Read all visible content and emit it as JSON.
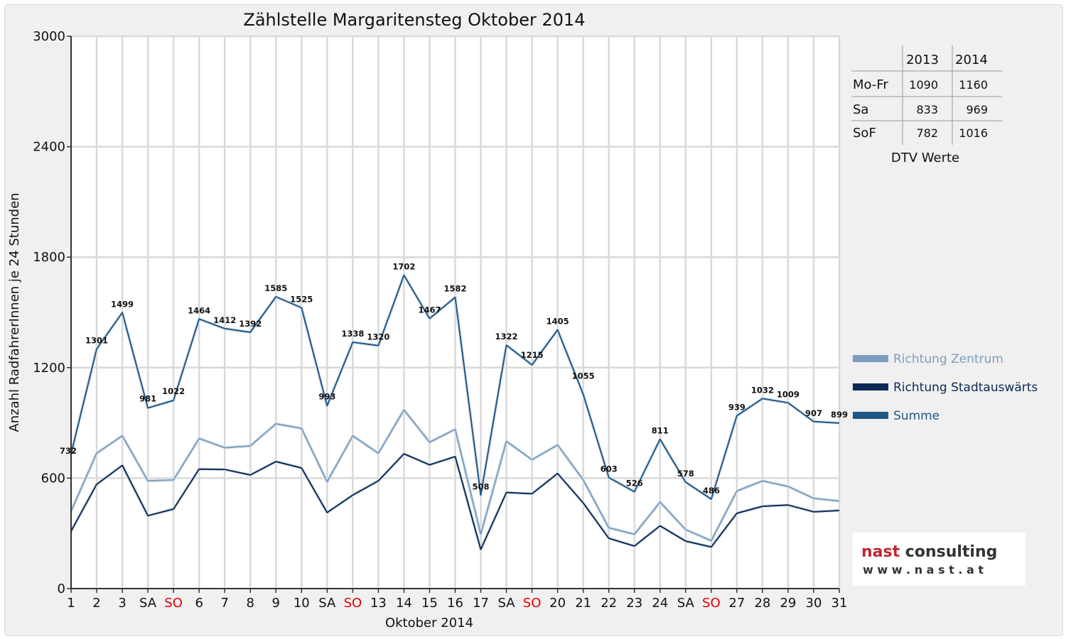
{
  "chart_data": {
    "type": "line",
    "title": "Zählstelle Margaritensteg Oktober 2014",
    "xlabel": "Oktober 2014",
    "ylabel": "Anzahl RadfahrerInnen je 24 Stunden",
    "ylim": [
      0,
      3000
    ],
    "yticks": [
      "0",
      "600",
      "1200",
      "1800",
      "2400",
      "3000"
    ],
    "categories": [
      "1",
      "2",
      "3",
      "SA",
      "SO",
      "6",
      "7",
      "8",
      "9",
      "10",
      "SA",
      "SO",
      "13",
      "14",
      "15",
      "16",
      "17",
      "SA",
      "SO",
      "20",
      "21",
      "22",
      "23",
      "24",
      "SA",
      "SO",
      "27",
      "28",
      "29",
      "30",
      "31"
    ],
    "sunday_label": "SO",
    "grid": true,
    "legend_position": "right",
    "series": [
      {
        "name": "Richtung Zentrum",
        "color": "#7b9ec0",
        "values": [
          420,
          735,
          830,
          585,
          590,
          815,
          765,
          775,
          895,
          870,
          580,
          830,
          735,
          970,
          795,
          865,
          295,
          800,
          700,
          780,
          590,
          330,
          295,
          470,
          320,
          260,
          530,
          585,
          555,
          490,
          475
        ]
      },
      {
        "name": "Richtung Stadtauswärts",
        "color": "#0c2a55",
        "values": [
          312,
          566,
          669,
          396,
          432,
          649,
          647,
          617,
          690,
          655,
          413,
          508,
          585,
          732,
          672,
          717,
          213,
          522,
          515,
          625,
          465,
          273,
          231,
          341,
          258,
          226,
          409,
          447,
          454,
          417,
          424
        ]
      },
      {
        "name": "Summe",
        "color": "#1f5786",
        "values": [
          732,
          1301,
          1499,
          981,
          1022,
          1464,
          1412,
          1392,
          1585,
          1525,
          993,
          1338,
          1320,
          1702,
          1467,
          1582,
          508,
          1322,
          1215,
          1405,
          1055,
          603,
          526,
          811,
          578,
          486,
          939,
          1032,
          1009,
          907,
          899
        ]
      }
    ],
    "data_labels": [
      "732",
      "1301",
      "1499",
      "981",
      "1022",
      "1464",
      "1412",
      "1392",
      "1585",
      "1525",
      "993",
      "1338",
      "1320",
      "1702",
      "1467",
      "1582",
      "508",
      "1322",
      "1215",
      "1405",
      "1055",
      "603",
      "526",
      "811",
      "578",
      "486",
      "939",
      "1032",
      "1009",
      "907",
      "899"
    ]
  },
  "dtv_table": {
    "headers": [
      "",
      "2013",
      "2014"
    ],
    "rows": [
      {
        "label": "Mo-Fr",
        "y2013": "1090",
        "y2014": "1160"
      },
      {
        "label": "Sa",
        "y2013": "833",
        "y2014": "969"
      },
      {
        "label": "SoF",
        "y2013": "782",
        "y2014": "1016"
      }
    ],
    "caption": "DTV Werte"
  },
  "logo": {
    "line1_part1": "nast",
    "line1_part2": " consulting",
    "line2": "w w w . n a s t . a t",
    "color_red": "#c0272d",
    "color_dark": "#333333"
  }
}
